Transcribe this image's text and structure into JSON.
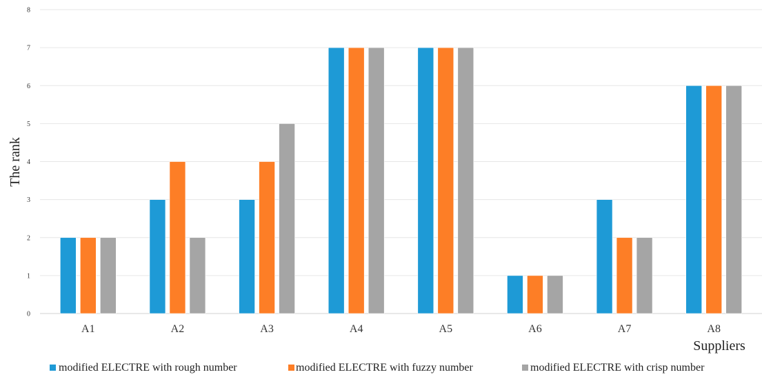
{
  "chart_data": {
    "type": "bar",
    "categories": [
      "A1",
      "A2",
      "A3",
      "A4",
      "A5",
      "A6",
      "A7",
      "A8"
    ],
    "series": [
      {
        "name": "modified ELECTRE with rough number",
        "color": "#1e9ad6",
        "values": [
          2,
          3,
          3,
          7,
          7,
          1,
          3,
          6
        ]
      },
      {
        "name": "modified ELECTRE with fuzzy number",
        "color": "#fd7e26",
        "values": [
          2,
          4,
          4,
          7,
          7,
          1,
          2,
          6
        ]
      },
      {
        "name": "modified ELECTRE with crisp number",
        "color": "#a5a5a5",
        "values": [
          2,
          2,
          5,
          7,
          7,
          1,
          2,
          6
        ]
      }
    ],
    "xlabel": "Suppliers",
    "ylabel": "The rank",
    "ylim": [
      0,
      8
    ],
    "yticks": [
      0,
      1,
      2,
      3,
      4,
      5,
      6,
      7,
      8
    ],
    "grid": true,
    "legend": "bottom"
  }
}
